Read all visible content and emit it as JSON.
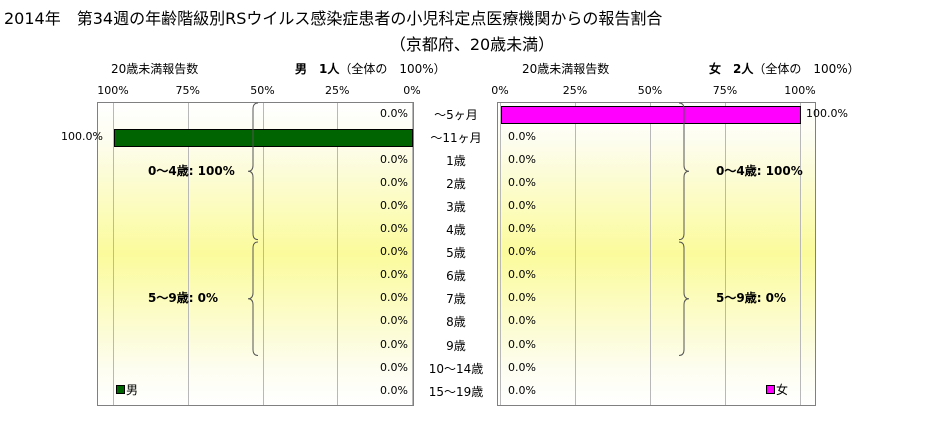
{
  "chart_data": {
    "type": "bar",
    "title": "2014年　第34週の年齢階級別RSウイルス感染症患者の小児科定点医療機関からの報告割合",
    "subtitle": "（京都府、20歳未満）",
    "categories": [
      "～5ヶ月",
      "～11ヶ月",
      "1歳",
      "2歳",
      "3歳",
      "4歳",
      "5歳",
      "6歳",
      "7歳",
      "8歳",
      "9歳",
      "10～14歳",
      "15～19歳"
    ],
    "xlim": [
      0,
      100
    ],
    "grid": true,
    "panels": [
      {
        "id": "male",
        "direction": "right-to-left",
        "axis_label": "20歳未満報告数",
        "header_bold": "男　1人",
        "header_rest": "（全体の　100%）",
        "ticks": [
          "100%",
          "75%",
          "50%",
          "25%",
          "0%"
        ],
        "series_name": "男",
        "color": "#006400",
        "values": [
          0,
          100,
          0,
          0,
          0,
          0,
          0,
          0,
          0,
          0,
          0,
          0,
          0
        ],
        "value_labels": [
          "0.0%",
          "100.0%",
          "0.0%",
          "0.0%",
          "0.0%",
          "0.0%",
          "0.0%",
          "0.0%",
          "0.0%",
          "0.0%",
          "0.0%",
          "0.0%",
          "0.0%"
        ],
        "groups": [
          {
            "label": "0～4歳: 100%",
            "from": 0,
            "to": 5
          },
          {
            "label": "5～9歳: 0%",
            "from": 6,
            "to": 10
          }
        ]
      },
      {
        "id": "female",
        "direction": "left-to-right",
        "axis_label": "20歳未満報告数",
        "header_bold": "女　2人",
        "header_rest": "（全体の　100%）",
        "ticks": [
          "0%",
          "25%",
          "50%",
          "75%",
          "100%"
        ],
        "series_name": "女",
        "color": "#ff00ff",
        "values": [
          100,
          0,
          0,
          0,
          0,
          0,
          0,
          0,
          0,
          0,
          0,
          0,
          0
        ],
        "value_labels": [
          "100.0%",
          "0.0%",
          "0.0%",
          "0.0%",
          "0.0%",
          "0.0%",
          "0.0%",
          "0.0%",
          "0.0%",
          "0.0%",
          "0.0%",
          "0.0%",
          "0.0%"
        ],
        "groups": [
          {
            "label": "0～4歳: 100%",
            "from": 0,
            "to": 5
          },
          {
            "label": "5～9歳: 0%",
            "from": 6,
            "to": 10
          }
        ]
      }
    ]
  }
}
